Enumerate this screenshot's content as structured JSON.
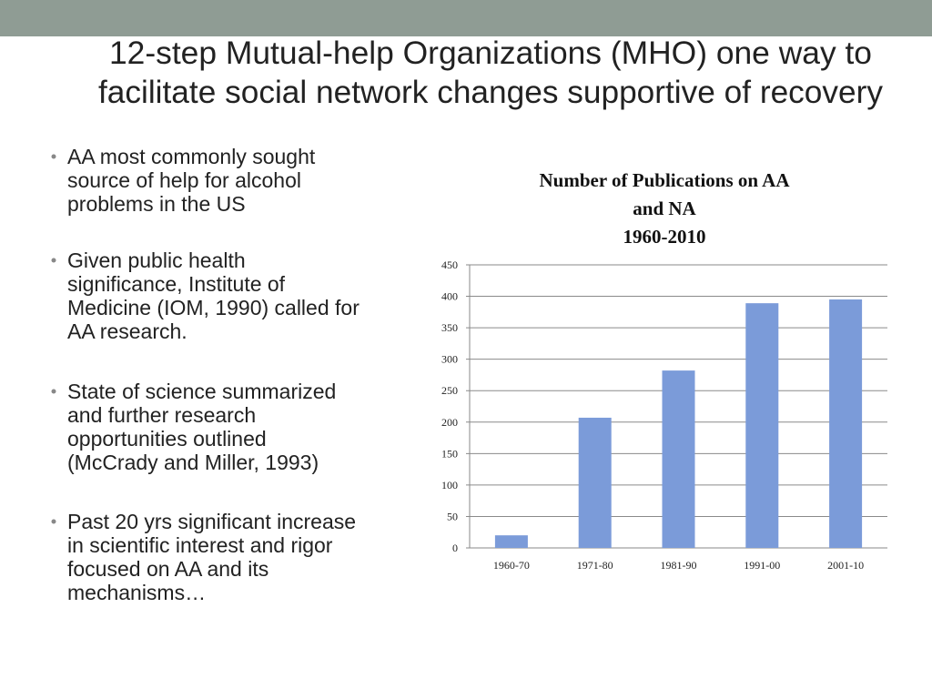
{
  "title_lines": [
    "12-step Mutual-help Organizations (MHO) one way to",
    "facilitate social network changes supportive of recovery"
  ],
  "bullets": [
    [
      "AA most commonly sought",
      "source of help for alcohol",
      "problems in the US"
    ],
    [
      "Given public health",
      "significance, Institute of",
      "Medicine (IOM, 1990) called for",
      "AA research."
    ],
    [
      "State of science summarized",
      "and further research",
      "opportunities  outlined",
      "(McCrady and Miller, 1993)"
    ],
    [
      "Past 20 yrs significant increase",
      "in scientific interest and rigor",
      "focused on AA and its",
      "mechanisms…"
    ]
  ],
  "chart_data": {
    "type": "bar",
    "title": [
      "Number of Publications on AA",
      "and NA",
      "1960-2010"
    ],
    "categories": [
      "1960-70",
      "1971-80",
      "1981-90",
      "1991-00",
      "2001-10"
    ],
    "values": [
      20,
      207,
      282,
      389,
      395
    ],
    "color": "#7b9bd9",
    "ylim": [
      0,
      450
    ],
    "yticks": [
      0,
      50,
      100,
      150,
      200,
      250,
      300,
      350,
      400,
      450
    ],
    "grid": true
  }
}
